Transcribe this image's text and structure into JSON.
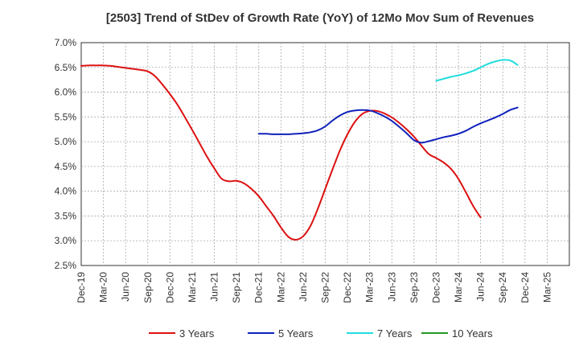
{
  "chart_data": {
    "type": "line",
    "title": "[2503]  Trend of StDev of Growth Rate (YoY) of 12Mo Mov Sum of Revenues",
    "xlabel": "",
    "ylabel": "",
    "ylim": [
      2.5,
      7.0
    ],
    "yticks": [
      "2.5%",
      "3.0%",
      "3.5%",
      "4.0%",
      "4.5%",
      "5.0%",
      "5.5%",
      "6.0%",
      "6.5%",
      "7.0%"
    ],
    "ytick_values": [
      2.5,
      3.0,
      3.5,
      4.0,
      4.5,
      5.0,
      5.5,
      6.0,
      6.5,
      7.0
    ],
    "x_start": "Dec-19",
    "months_total": 66,
    "xticks": [
      "Dec-19",
      "Mar-20",
      "Jun-20",
      "Sep-20",
      "Dec-20",
      "Mar-21",
      "Jun-21",
      "Sep-21",
      "Dec-21",
      "Mar-22",
      "Jun-22",
      "Sep-22",
      "Dec-22",
      "Mar-23",
      "Jun-23",
      "Sep-23",
      "Dec-23",
      "Mar-24",
      "Jun-24",
      "Sep-24",
      "Dec-24",
      "Mar-25"
    ],
    "grid": true,
    "legend_position": "bottom",
    "series": [
      {
        "name": "3 Years",
        "color": "#dd1111",
        "start_index": 0,
        "values": [
          6.53,
          6.54,
          6.54,
          6.54,
          6.53,
          6.51,
          6.49,
          6.47,
          6.45,
          6.42,
          6.32,
          6.15,
          5.96,
          5.75,
          5.5,
          5.24,
          4.97,
          4.7,
          4.46,
          4.25,
          4.2,
          4.21,
          4.16,
          4.05,
          3.9,
          3.7,
          3.5,
          3.27,
          3.08,
          3.02,
          3.09,
          3.3,
          3.65,
          4.05,
          4.45,
          4.83,
          5.15,
          5.4,
          5.56,
          5.62,
          5.62,
          5.57,
          5.49,
          5.38,
          5.25,
          5.1,
          4.92,
          4.75,
          4.67,
          4.58,
          4.45,
          4.25,
          3.98,
          3.7,
          3.47
        ]
      },
      {
        "name": "5 Years",
        "color": "#1122bb",
        "start_index": 24,
        "values": [
          5.16,
          5.16,
          5.15,
          5.15,
          5.15,
          5.16,
          5.17,
          5.19,
          5.23,
          5.31,
          5.43,
          5.53,
          5.6,
          5.63,
          5.64,
          5.63,
          5.58,
          5.51,
          5.42,
          5.3,
          5.17,
          5.03,
          4.98,
          5.01,
          5.05,
          5.09,
          5.12,
          5.16,
          5.22,
          5.3,
          5.37,
          5.43,
          5.49,
          5.56,
          5.64,
          5.69
        ]
      },
      {
        "name": "7 Years",
        "color": "#22dddd",
        "start_index": 48,
        "values": [
          6.23,
          6.27,
          6.31,
          6.34,
          6.38,
          6.43,
          6.5,
          6.57,
          6.62,
          6.65,
          6.64,
          6.55
        ]
      },
      {
        "name": "10 Years",
        "color": "#229922",
        "start_index": null,
        "values": []
      }
    ]
  }
}
